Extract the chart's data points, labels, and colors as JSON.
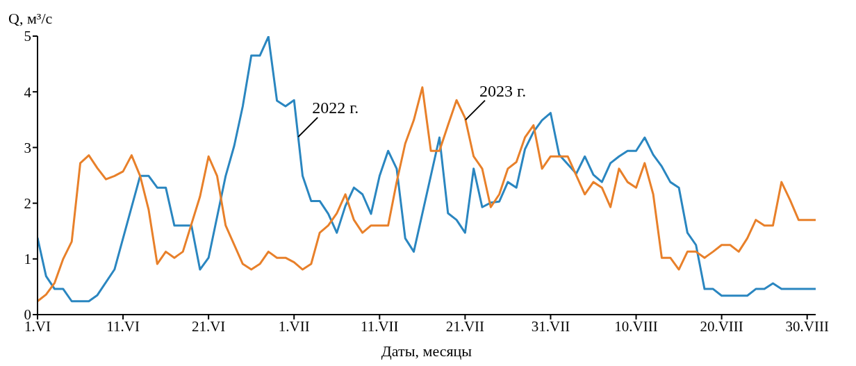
{
  "chart_data": {
    "type": "line",
    "xlabel": "Даты, месяцы",
    "ylabel": "Q, м³/с",
    "xlim": [
      "--06-01",
      "--08-31"
    ],
    "xticks": [
      {
        "value": "--06-01",
        "label": "1.VI"
      },
      {
        "value": "--06-11",
        "label": "11.VI"
      },
      {
        "value": "--06-21",
        "label": "21.VI"
      },
      {
        "value": "--07-01",
        "label": "1.VII"
      },
      {
        "value": "--07-11",
        "label": "11.VII"
      },
      {
        "value": "--07-21",
        "label": "21.VII"
      },
      {
        "value": "--07-31",
        "label": "31.VII"
      },
      {
        "value": "--08-10",
        "label": "10.VIII"
      },
      {
        "value": "--08-20",
        "label": "20.VIII"
      },
      {
        "value": "--08-30",
        "label": "30.VIII"
      }
    ],
    "ylim": [
      0,
      5
    ],
    "yticks": [
      0,
      1,
      2,
      3,
      4,
      5
    ],
    "marker": "none",
    "line_style": "solid",
    "series": [
      {
        "name": "2022 г.",
        "color": "#2a86c0",
        "x": [
          "--06-01",
          "--06-02",
          "--06-03",
          "--06-04",
          "--06-05",
          "--06-07",
          "--06-08",
          "--06-10",
          "--06-13",
          "--06-14",
          "--06-15",
          "--06-16",
          "--06-17",
          "--06-19",
          "--06-20",
          "--06-21",
          "--06-23",
          "--06-24",
          "--06-25",
          "--06-26",
          "--06-27",
          "--06-28",
          "--06-29",
          "--06-30",
          "--07-01",
          "--07-02",
          "--07-03",
          "--07-04",
          "--07-05",
          "--07-06",
          "--07-07",
          "--07-08",
          "--07-09",
          "--07-10",
          "--07-11",
          "--07-12",
          "--07-13",
          "--07-14",
          "--07-15",
          "--07-18",
          "--07-19",
          "--07-20",
          "--07-21",
          "--07-22",
          "--07-23",
          "--07-24",
          "--07-25",
          "--07-26",
          "--07-27",
          "--07-28",
          "--07-29",
          "--07-30",
          "--07-31",
          "--08-01",
          "--08-03",
          "--08-04",
          "--08-05",
          "--08-06",
          "--08-07",
          "--08-08",
          "--08-09",
          "--08-10",
          "--08-11",
          "--08-12",
          "--08-13",
          "--08-14",
          "--08-15",
          "--08-16",
          "--08-17",
          "--08-18",
          "--08-19",
          "--08-20",
          "--08-23",
          "--08-24",
          "--08-25",
          "--08-26",
          "--08-27",
          "--08-31"
        ],
        "values": [
          1.38,
          0.69,
          0.46,
          0.46,
          0.24,
          0.24,
          0.35,
          0.81,
          2.49,
          2.49,
          2.28,
          2.28,
          1.6,
          1.6,
          0.81,
          1.02,
          2.49,
          3.03,
          3.74,
          4.65,
          4.65,
          4.99,
          3.84,
          3.74,
          3.85,
          2.49,
          2.04,
          2.04,
          1.81,
          1.47,
          1.95,
          2.28,
          2.16,
          1.81,
          2.49,
          2.94,
          2.62,
          1.37,
          1.13,
          3.18,
          1.82,
          1.7,
          1.47,
          2.62,
          1.93,
          2.01,
          2.03,
          2.38,
          2.28,
          2.97,
          3.28,
          3.49,
          3.62,
          2.87,
          2.53,
          2.84,
          2.51,
          2.38,
          2.72,
          2.84,
          2.94,
          2.94,
          3.18,
          2.87,
          2.66,
          2.38,
          2.28,
          1.47,
          1.25,
          0.46,
          0.46,
          0.34,
          0.34,
          0.46,
          0.46,
          0.56,
          0.46,
          0.46
        ]
      },
      {
        "name": "2023 г.",
        "color": "#e8802a",
        "x": [
          "--06-01",
          "--06-02",
          "--06-03",
          "--06-04",
          "--06-05",
          "--06-06",
          "--06-07",
          "--06-08",
          "--06-09",
          "--06-10",
          "--06-11",
          "--06-12",
          "--06-13",
          "--06-14",
          "--06-15",
          "--06-16",
          "--06-17",
          "--06-18",
          "--06-20",
          "--06-21",
          "--06-22",
          "--06-23",
          "--06-25",
          "--06-26",
          "--06-27",
          "--06-28",
          "--06-29",
          "--06-30",
          "--07-01",
          "--07-02",
          "--07-03",
          "--07-04",
          "--07-05",
          "--07-06",
          "--07-07",
          "--07-08",
          "--07-09",
          "--07-10",
          "--07-12",
          "--07-13",
          "--07-14",
          "--07-15",
          "--07-16",
          "--07-17",
          "--07-18",
          "--07-19",
          "--07-20",
          "--07-21",
          "--07-22",
          "--07-23",
          "--07-24",
          "--07-25",
          "--07-26",
          "--07-27",
          "--07-28",
          "--07-29",
          "--07-30",
          "--07-31",
          "--08-02",
          "--08-04",
          "--08-05",
          "--08-06",
          "--08-07",
          "--08-08",
          "--08-09",
          "--08-10",
          "--08-11",
          "--08-12",
          "--08-13",
          "--08-14",
          "--08-15",
          "--08-16",
          "--08-17",
          "--08-18",
          "--08-19",
          "--08-20",
          "--08-21",
          "--08-22",
          "--08-23",
          "--08-24",
          "--08-25",
          "--08-26",
          "--08-27",
          "--08-28",
          "--08-29",
          "--08-31"
        ],
        "values": [
          0.24,
          0.36,
          0.57,
          1.0,
          1.31,
          2.72,
          2.86,
          2.63,
          2.43,
          2.49,
          2.57,
          2.86,
          2.49,
          1.88,
          0.91,
          1.13,
          1.02,
          1.13,
          2.12,
          2.84,
          2.49,
          1.6,
          0.91,
          0.81,
          0.91,
          1.13,
          1.02,
          1.02,
          0.94,
          0.81,
          0.91,
          1.47,
          1.6,
          1.82,
          2.16,
          1.7,
          1.47,
          1.6,
          1.6,
          2.38,
          3.07,
          3.49,
          4.08,
          2.94,
          2.94,
          3.4,
          3.85,
          3.53,
          2.84,
          2.62,
          1.93,
          2.16,
          2.62,
          2.74,
          3.18,
          3.4,
          2.62,
          2.84,
          2.84,
          2.16,
          2.38,
          2.28,
          1.93,
          2.62,
          2.38,
          2.28,
          2.72,
          2.16,
          1.02,
          1.02,
          0.81,
          1.13,
          1.13,
          1.02,
          1.13,
          1.25,
          1.25,
          1.13,
          1.37,
          1.7,
          1.6,
          1.6,
          2.38,
          2.06,
          1.7,
          1.7
        ]
      }
    ]
  }
}
